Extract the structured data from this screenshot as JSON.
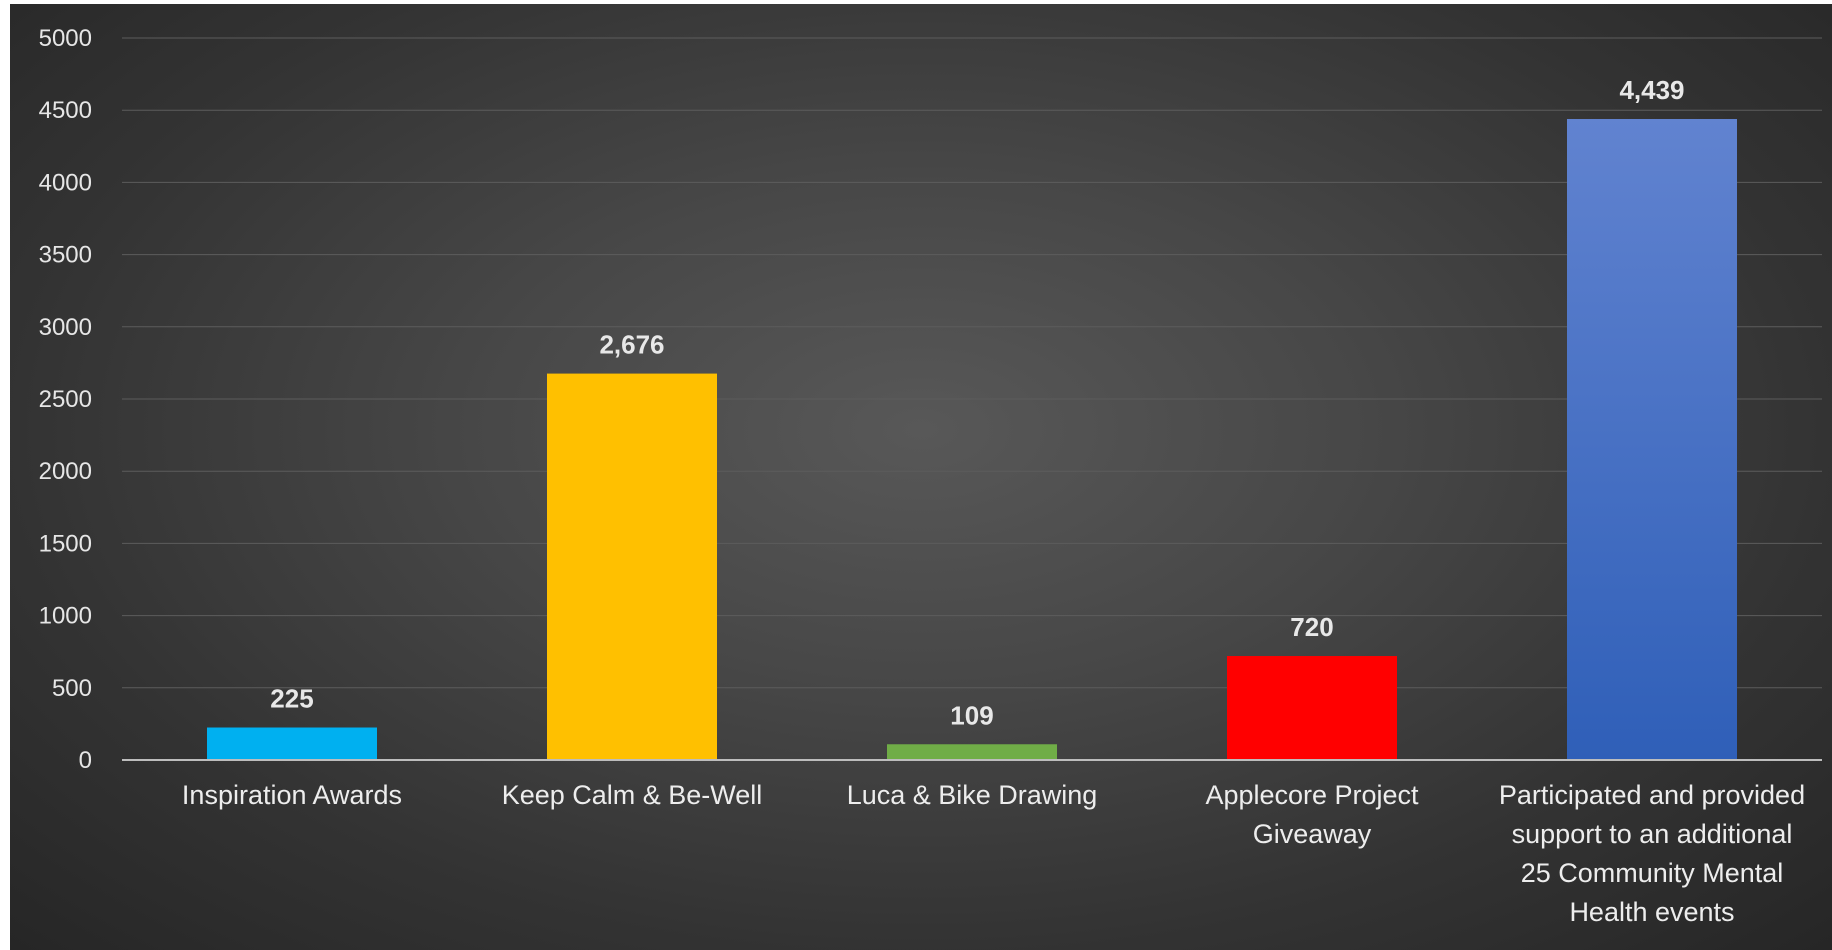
{
  "chart_data": {
    "type": "bar",
    "title": "",
    "xlabel": "",
    "ylabel": "",
    "categories": [
      "Inspiration Awards",
      "Keep Calm & Be-Well",
      "Luca & Bike Drawing",
      "Applecore Project Giveaway",
      "Participated and provided support to an additional 25 Community Mental Health events"
    ],
    "category_lines": [
      [
        "Inspiration Awards"
      ],
      [
        "Keep Calm & Be-Well"
      ],
      [
        "Luca & Bike Drawing"
      ],
      [
        "Applecore Project",
        "Giveaway"
      ],
      [
        "Participated and provided",
        "support to an additional",
        "25 Community Mental",
        "Health events"
      ]
    ],
    "values": [
      225,
      2676,
      109,
      720,
      4439
    ],
    "data_labels": [
      "225",
      "2,676",
      "109",
      "720",
      "4,439"
    ],
    "colors": [
      "#00b0f0",
      "#ffc000",
      "#70ad47",
      "#ff0000",
      "#4472c4"
    ],
    "ylim": [
      0,
      5000
    ],
    "yticks": [
      0,
      500,
      1000,
      1500,
      2000,
      2500,
      3000,
      3500,
      4000,
      4500,
      5000
    ],
    "grid": true,
    "legend": "none"
  }
}
